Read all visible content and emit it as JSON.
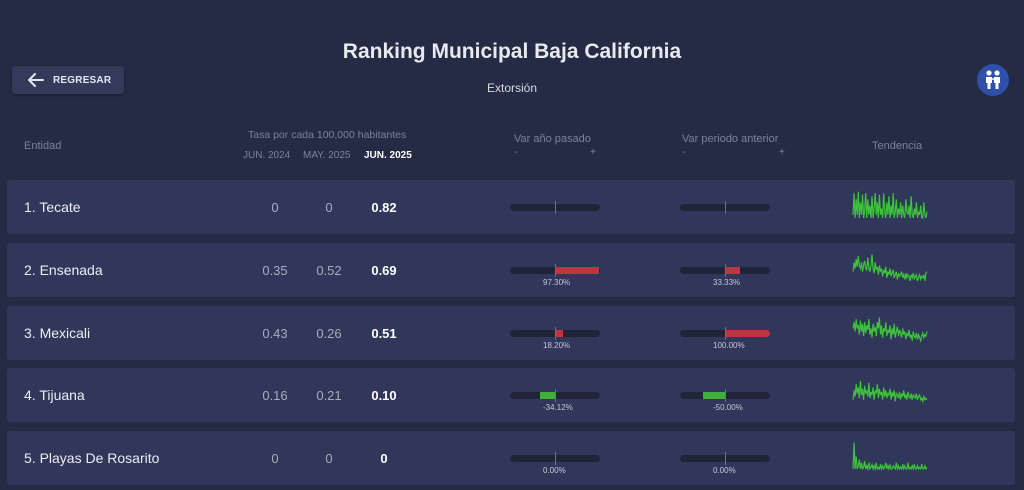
{
  "header": {
    "title": "Ranking Municipal Baja California",
    "subtitle": "Extorsión",
    "back_label": "REGRESAR"
  },
  "columns": {
    "entity": "Entidad",
    "rate_title": "Tasa por cada 100,000 habitantes",
    "period1": "JUN. 2024",
    "period2": "MAY. 2025",
    "period3": "JUN. 2025",
    "var_year": "Var año pasado",
    "var_period": "Var periodo anterior",
    "minus": "-",
    "plus": "+",
    "trend": "Tendencia"
  },
  "colors": {
    "background": "#252b45",
    "row": "#30375a",
    "increase": "#c4323f",
    "decrease": "#3fae3a",
    "spark": "#3ec43a"
  },
  "rows": [
    {
      "name": "1. Tecate",
      "v1": "0",
      "v2": "0",
      "v3": "0.82",
      "var_year": {
        "value": 0,
        "label": ""
      },
      "var_period": {
        "value": 0,
        "label": ""
      },
      "trend": [
        0.2,
        0.9,
        0.1,
        0.7,
        0.2,
        0.95,
        0.1,
        0.6,
        0.2,
        0.85,
        0.1,
        0.3,
        0.9,
        0.1,
        0.7,
        0.2,
        0.5,
        0.1,
        0.8,
        0.1,
        0.4,
        0.9,
        0.2,
        0.6,
        0.1,
        0.85,
        0.2,
        0.4,
        0.1,
        0.9,
        0.3,
        0.1,
        0.6,
        0.2,
        0.8,
        0.1,
        0.5,
        0.2,
        0.9,
        0.1,
        0.3,
        0.7,
        0.1,
        0.4,
        0.2,
        0.6,
        0.1,
        0.5,
        0.2,
        0.1,
        0.7,
        0.3,
        0.2,
        0.5,
        0.1,
        0.8,
        0.2,
        0.1,
        0.4,
        0.2,
        0.6,
        0.1,
        0.3,
        0.2,
        0.5,
        0.1,
        0.1,
        0.6,
        0.2,
        0.1,
        0.3
      ]
    },
    {
      "name": "2. Ensenada",
      "v1": "0.35",
      "v2": "0.52",
      "v3": "0.69",
      "var_year": {
        "value": 97.3,
        "label": "97.30%"
      },
      "var_period": {
        "value": 33.33,
        "label": "33.33%"
      },
      "trend": [
        0.4,
        0.7,
        0.5,
        0.8,
        0.55,
        0.9,
        0.6,
        0.5,
        0.7,
        0.4,
        0.6,
        0.75,
        0.5,
        0.45,
        0.85,
        0.5,
        0.4,
        0.6,
        0.95,
        0.5,
        0.35,
        0.7,
        0.45,
        0.55,
        0.3,
        0.6,
        0.4,
        0.5,
        0.25,
        0.45,
        0.35,
        0.55,
        0.2,
        0.4,
        0.3,
        0.5,
        0.25,
        0.35,
        0.45,
        0.2,
        0.3,
        0.4,
        0.15,
        0.35,
        0.25,
        0.3,
        0.4,
        0.2,
        0.3,
        0.15,
        0.35,
        0.2,
        0.3,
        0.25,
        0.1,
        0.3,
        0.2,
        0.35,
        0.15,
        0.25,
        0.3,
        0.1,
        0.2,
        0.3,
        0.15,
        0.25,
        0.2,
        0.3,
        0.1,
        0.35,
        0.4
      ]
    },
    {
      "name": "3. Mexicali",
      "v1": "0.43",
      "v2": "0.26",
      "v3": "0.51",
      "var_year": {
        "value": 18.2,
        "label": "18.20%"
      },
      "var_period": {
        "value": 100.0,
        "label": "100.00%"
      },
      "trend": [
        0.6,
        0.8,
        0.5,
        0.9,
        0.6,
        0.7,
        0.4,
        0.85,
        0.5,
        0.75,
        0.35,
        0.8,
        0.45,
        0.7,
        0.55,
        0.9,
        0.4,
        0.6,
        0.3,
        0.75,
        0.5,
        0.65,
        0.35,
        0.8,
        0.6,
        0.95,
        0.4,
        0.7,
        0.3,
        0.6,
        0.5,
        0.8,
        0.35,
        0.55,
        0.45,
        0.7,
        0.25,
        0.6,
        0.4,
        0.75,
        0.3,
        0.5,
        0.65,
        0.35,
        0.55,
        0.45,
        0.3,
        0.6,
        0.4,
        0.5,
        0.25,
        0.45,
        0.35,
        0.55,
        0.3,
        0.4,
        0.2,
        0.5,
        0.35,
        0.3,
        0.45,
        0.25,
        0.4,
        0.3,
        0.2,
        0.35,
        0.45,
        0.3,
        0.4,
        0.35,
        0.5
      ]
    },
    {
      "name": "4. Tijuana",
      "v1": "0.16",
      "v2": "0.21",
      "v3": "0.10",
      "var_year": {
        "value": -34.12,
        "label": "-34.12%"
      },
      "var_period": {
        "value": -50.0,
        "label": "-50.00%"
      },
      "trend": [
        0.3,
        0.6,
        0.4,
        0.8,
        0.5,
        0.7,
        0.35,
        0.9,
        0.45,
        0.65,
        0.3,
        0.75,
        0.5,
        0.6,
        0.4,
        0.85,
        0.35,
        0.55,
        0.45,
        0.7,
        0.3,
        0.6,
        0.5,
        0.8,
        0.35,
        0.65,
        0.45,
        0.55,
        0.3,
        0.7,
        0.4,
        0.6,
        0.35,
        0.5,
        0.45,
        0.65,
        0.3,
        0.55,
        0.4,
        0.6,
        0.25,
        0.5,
        0.45,
        0.35,
        0.55,
        0.3,
        0.5,
        0.4,
        0.6,
        0.35,
        0.45,
        0.3,
        0.55,
        0.4,
        0.35,
        0.5,
        0.3,
        0.45,
        0.4,
        0.35,
        0.5,
        0.3,
        0.4,
        0.45,
        0.3,
        0.35,
        0.25,
        0.4,
        0.3,
        0.35,
        0.3
      ]
    },
    {
      "name": "5. Playas De Rosarito",
      "v1": "0",
      "v2": "0",
      "v3": "0",
      "var_year": {
        "value": 0,
        "label": "0.00%"
      },
      "var_period": {
        "value": 0,
        "label": "0.00%"
      },
      "trend": [
        0.1,
        0.95,
        0.1,
        0.5,
        0.1,
        0.2,
        0.4,
        0.1,
        0.3,
        0.1,
        0.15,
        0.35,
        0.1,
        0.2,
        0.1,
        0.3,
        0.1,
        0.15,
        0.25,
        0.1,
        0.2,
        0.1,
        0.3,
        0.1,
        0.15,
        0.1,
        0.25,
        0.1,
        0.2,
        0.1,
        0.15,
        0.3,
        0.1,
        0.2,
        0.1,
        0.25,
        0.1,
        0.1,
        0.2,
        0.15,
        0.1,
        0.3,
        0.1,
        0.2,
        0.1,
        0.15,
        0.1,
        0.25,
        0.1,
        0.2,
        0.1,
        0.1,
        0.3,
        0.1,
        0.15,
        0.1,
        0.2,
        0.1,
        0.25,
        0.1,
        0.1,
        0.2,
        0.1,
        0.15,
        0.1,
        0.25,
        0.1,
        0.1,
        0.2,
        0.1,
        0.15
      ]
    }
  ]
}
